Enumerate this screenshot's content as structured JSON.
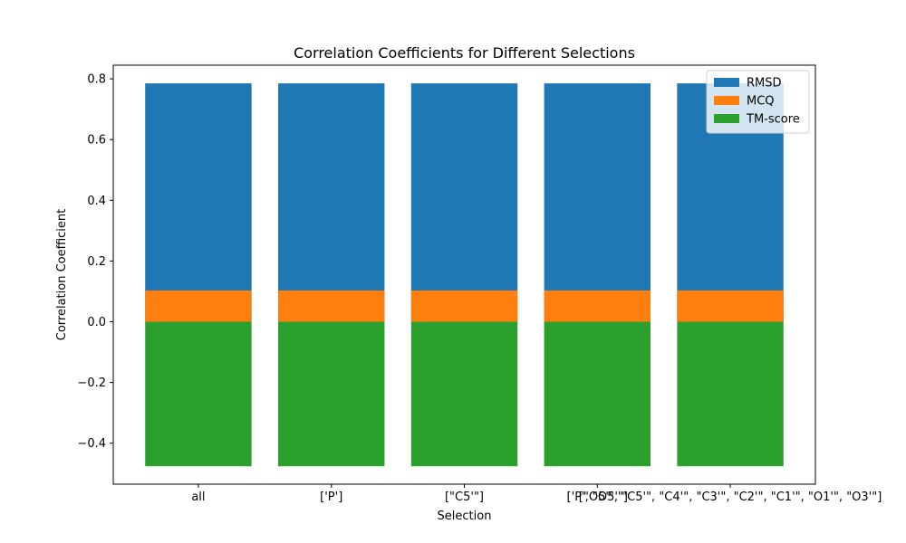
{
  "chart_data": {
    "type": "bar",
    "title": "Correlation Coefficients for Different Selections",
    "xlabel": "Selection",
    "ylabel": "Correlation Coefficient",
    "categories": [
      "all",
      "['P']",
      "[\"C5'\"]",
      "['P', \"O5'\"]",
      "[\"O5'\", \"C5'\", \"C4'\", \"C3'\", \"C2'\", \"C1'\", \"O1'\", \"O3'\"]"
    ],
    "series": [
      {
        "name": "RMSD",
        "color": "#1f77b4",
        "values": [
          0.785,
          0.785,
          0.785,
          0.785,
          0.785
        ]
      },
      {
        "name": "MCQ",
        "color": "#ff7f0e",
        "values": [
          0.103,
          0.103,
          0.103,
          0.103,
          0.103
        ]
      },
      {
        "name": "TM-score",
        "color": "#2ca02c",
        "values": [
          -0.476,
          -0.476,
          -0.476,
          -0.476,
          -0.476
        ]
      }
    ],
    "ylim": [
      -0.535,
      0.845
    ],
    "yticks": [
      -0.4,
      -0.2,
      0.0,
      0.2,
      0.4,
      0.6,
      0.8
    ],
    "ytick_labels": [
      "−0.4",
      "−0.2",
      "0.0",
      "0.2",
      "0.4",
      "0.6",
      "0.8"
    ],
    "legend_position": "top-right",
    "grid": false
  }
}
